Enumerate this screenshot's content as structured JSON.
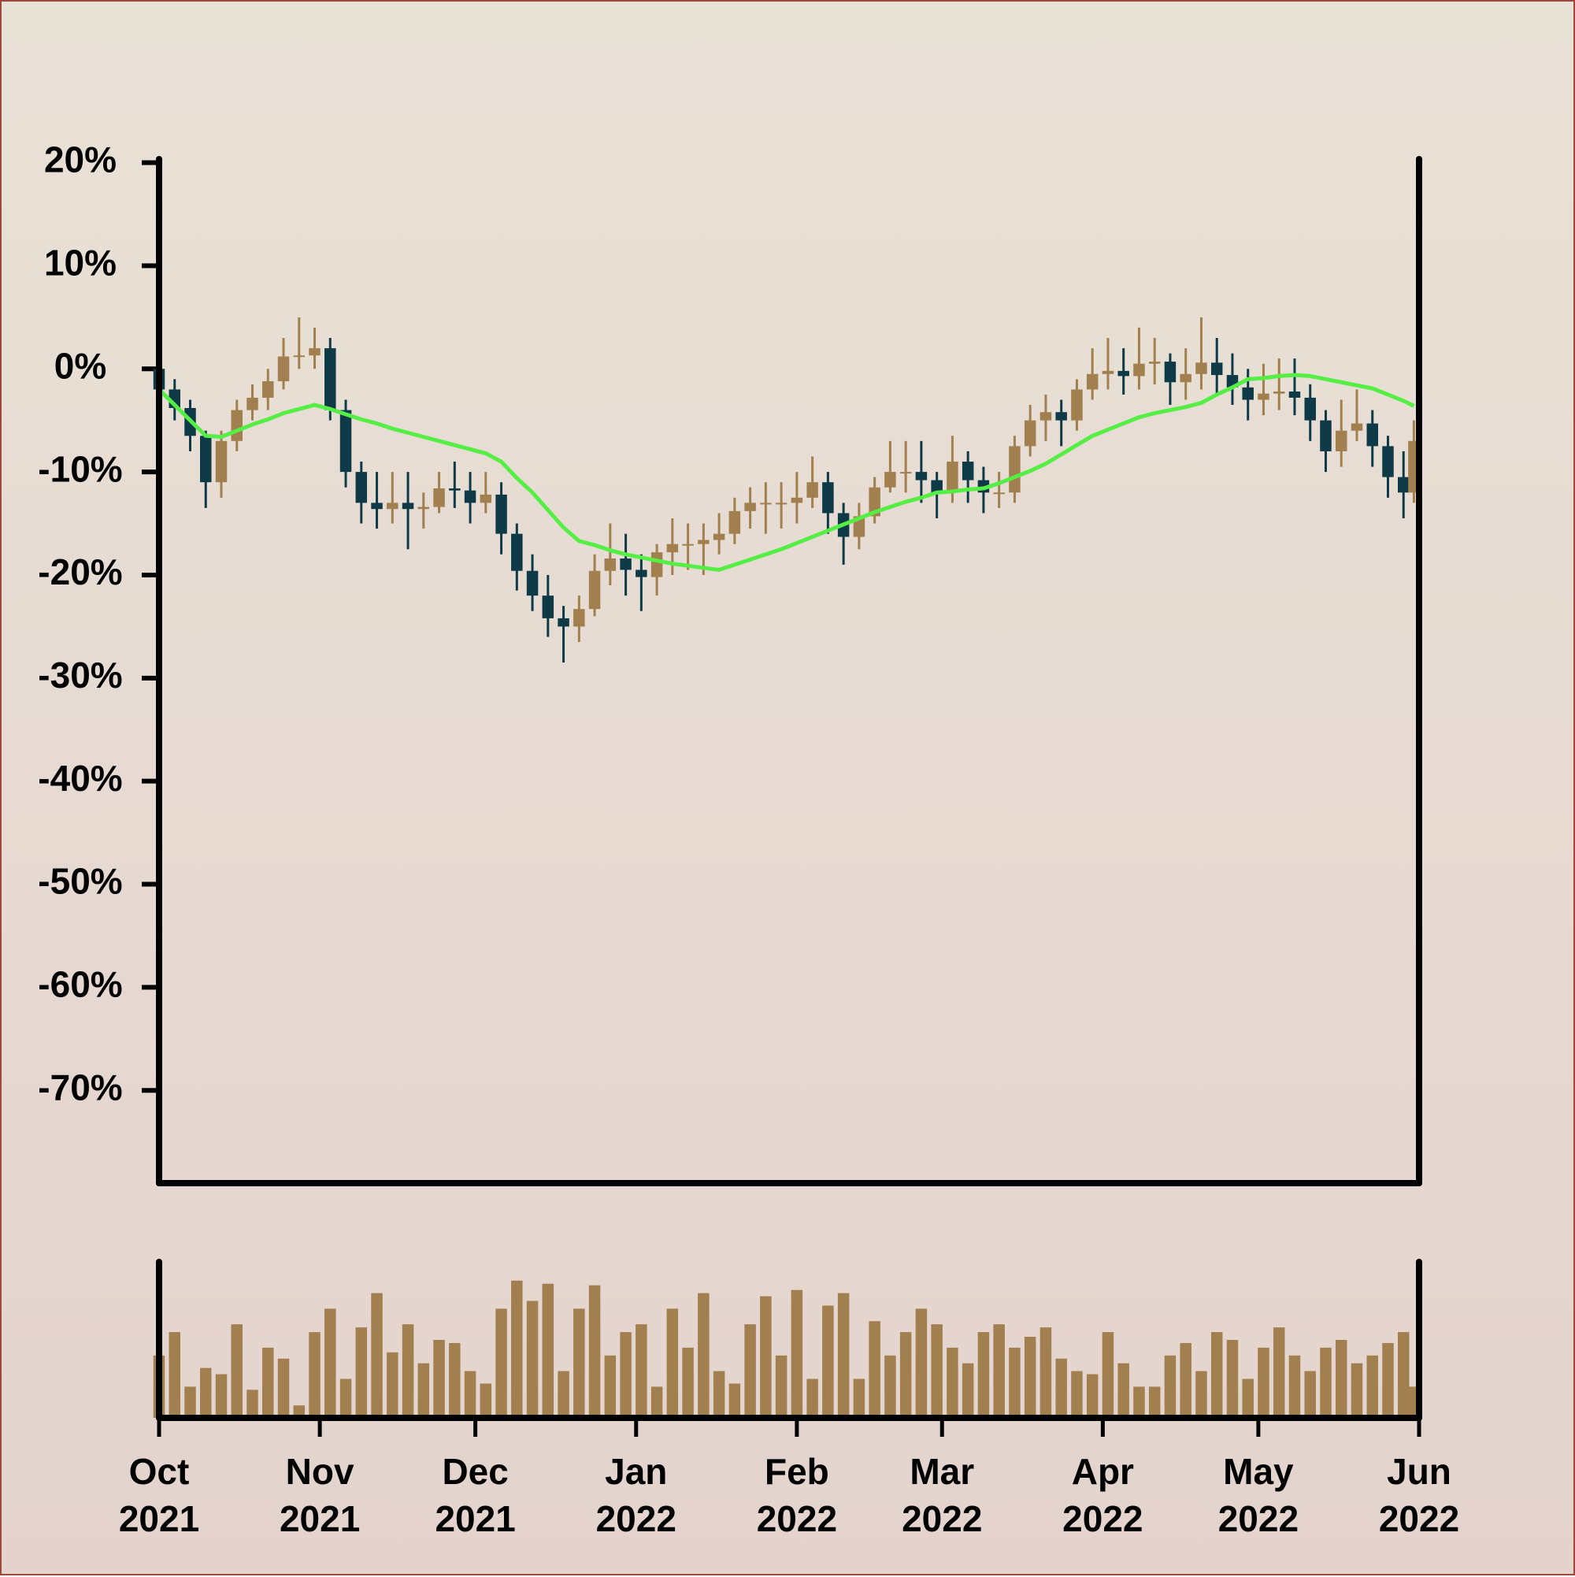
{
  "chart_data": {
    "type": "candlestick",
    "x": [
      0,
      3,
      6,
      9,
      12,
      15,
      18,
      21,
      24,
      27,
      30,
      33,
      36,
      39,
      42,
      45,
      48,
      51,
      54,
      57,
      60,
      63,
      66,
      69,
      72,
      75,
      78,
      81,
      84,
      87,
      90,
      93,
      96,
      99,
      102,
      105,
      108,
      111,
      114,
      117,
      120,
      123,
      126,
      129,
      132,
      135,
      138,
      141,
      144,
      147,
      150,
      153,
      156,
      159,
      162,
      165,
      168,
      171,
      174,
      177,
      180,
      183,
      186,
      189,
      192,
      195,
      198,
      201,
      204,
      207,
      210,
      213,
      216,
      219,
      222,
      225,
      228,
      231,
      234,
      237,
      240,
      242
    ],
    "open": [
      0,
      -2,
      -3.8,
      -6.5,
      -11,
      -7,
      -4,
      -2.8,
      -1.2,
      1.2,
      1.3,
      2,
      -4,
      -10,
      -13,
      -13.6,
      -13,
      -13.6,
      -13.4,
      -11.6,
      -11.8,
      -13,
      -12.2,
      -16,
      -19.6,
      -22,
      -24.2,
      -25,
      -23.3,
      -19.6,
      -18.4,
      -19.5,
      -20.2,
      -17.8,
      -17,
      -17,
      -16.6,
      -16,
      -13.8,
      -13,
      -13,
      -13,
      -12.5,
      -11,
      -14,
      -16.3,
      -14.3,
      -11.5,
      -10,
      -10,
      -10.8,
      -12,
      -9,
      -10.8,
      -12,
      -12,
      -7.5,
      -5,
      -4.2,
      -5,
      -2,
      -0.5,
      -0.2,
      -0.7,
      0.5,
      0.7,
      -1.3,
      -0.5,
      0.6,
      -0.6,
      -1.8,
      -3,
      -2.4,
      -2.2,
      -2.8,
      -5,
      -8,
      -6,
      -5.3,
      -7.5,
      -10.5,
      -12
    ],
    "high": [
      0.5,
      -1,
      -3,
      -6,
      -6,
      -3,
      -1.5,
      0,
      3,
      5,
      4,
      3,
      -3,
      -9,
      -10,
      -10,
      -10,
      -12,
      -10,
      -9,
      -10,
      -10,
      -11,
      -15,
      -18,
      -20,
      -23,
      -22,
      -18,
      -15,
      -16,
      -18,
      -17,
      -14.5,
      -15,
      -15,
      -14,
      -12.5,
      -11.5,
      -11,
      -11,
      -10,
      -8.5,
      -10,
      -13,
      -13,
      -10.5,
      -7,
      -7,
      -7,
      -10,
      -6.5,
      -8,
      -9.5,
      -10,
      -6.5,
      -3.5,
      -2.5,
      -3,
      -1,
      2,
      3,
      2,
      4,
      3,
      1.5,
      2,
      5,
      3,
      1.5,
      0,
      0.5,
      1,
      1,
      -1.5,
      -4,
      -3,
      -2,
      -4,
      -6.5,
      -8,
      -5
    ],
    "low": [
      -3,
      -5,
      -8,
      -13.5,
      -12.5,
      -8,
      -5,
      -4,
      -2,
      0,
      0,
      -5,
      -11.5,
      -15,
      -15.5,
      -15,
      -17.5,
      -15.5,
      -14,
      -13.5,
      -15,
      -14,
      -18,
      -21.5,
      -23.5,
      -26,
      -28.5,
      -26.5,
      -24,
      -21,
      -22,
      -23.5,
      -22,
      -20,
      -19.5,
      -20,
      -18,
      -17,
      -15.5,
      -16,
      -15.5,
      -15,
      -13.5,
      -16,
      -19,
      -17.5,
      -15,
      -12,
      -12,
      -13,
      -14.5,
      -13,
      -13,
      -14,
      -13.5,
      -13,
      -8.5,
      -7,
      -7.5,
      -6,
      -3,
      -2,
      -2.5,
      -2,
      -1.5,
      -3.5,
      -3,
      -2,
      -2.5,
      -3.5,
      -5,
      -4.5,
      -4,
      -4.5,
      -7,
      -10,
      -9.5,
      -7,
      -9.5,
      -12.5,
      -14.5,
      -13
    ],
    "close": [
      -2,
      -3.8,
      -6.5,
      -11,
      -7,
      -4,
      -2.8,
      -1.2,
      1.2,
      1.3,
      2,
      -4,
      -10,
      -13,
      -13.6,
      -13,
      -13.6,
      -13.4,
      -11.6,
      -11.8,
      -13,
      -12.2,
      -16,
      -19.6,
      -22,
      -24.2,
      -25,
      -23.3,
      -19.6,
      -18.4,
      -19.5,
      -20.2,
      -17.8,
      -17,
      -17,
      -16.6,
      -16,
      -13.8,
      -13,
      -13,
      -13,
      -12.5,
      -11,
      -14,
      -16.3,
      -14.3,
      -11.5,
      -10,
      -10,
      -10.8,
      -12,
      -9,
      -10.8,
      -12,
      -12,
      -7.5,
      -5,
      -4.2,
      -5,
      -2,
      -0.5,
      -0.2,
      -0.7,
      0.5,
      0.7,
      -1.3,
      -0.5,
      0.6,
      -0.6,
      -1.8,
      -3,
      -2.4,
      -2.2,
      -2.8,
      -5,
      -8,
      -6,
      -5.3,
      -7.5,
      -10.5,
      -12,
      -7
    ],
    "up_color": "#a17f4e",
    "down_color": "#0e3a48",
    "moving_average": {
      "color": "#55ee44",
      "values": [
        -2,
        -3.5,
        -5,
        -6.5,
        -6.6,
        -6,
        -5.4,
        -4.9,
        -4.3,
        -3.9,
        -3.5,
        -3.9,
        -4.4,
        -4.9,
        -5.3,
        -5.8,
        -6.2,
        -6.6,
        -7,
        -7.4,
        -7.8,
        -8.2,
        -9,
        -10.6,
        -12,
        -13.7,
        -15.4,
        -16.7,
        -17.1,
        -17.6,
        -18,
        -18.3,
        -18.6,
        -18.9,
        -19.1,
        -19.3,
        -19.5,
        -19,
        -18.5,
        -18,
        -17.5,
        -16.9,
        -16.3,
        -15.7,
        -15.1,
        -14.5,
        -13.9,
        -13.4,
        -12.9,
        -12.5,
        -12,
        -11.9,
        -11.7,
        -11.6,
        -11.1,
        -10.5,
        -9.9,
        -9.2,
        -8.3,
        -7.4,
        -6.5,
        -5.9,
        -5.3,
        -4.7,
        -4.3,
        -4,
        -3.7,
        -3.3,
        -2.5,
        -1.8,
        -1,
        -0.9,
        -0.7,
        -0.6,
        -0.7,
        -1,
        -1.3,
        -1.6,
        -1.9,
        -2.5,
        -3.1,
        -3.6
      ]
    },
    "volume": {
      "color": "#a17f4e",
      "ylim": [
        0,
        100
      ],
      "values": [
        40,
        55,
        20,
        32,
        28,
        60,
        18,
        45,
        38,
        8,
        55,
        70,
        25,
        58,
        80,
        42,
        60,
        35,
        50,
        48,
        30,
        22,
        70,
        88,
        75,
        86,
        30,
        70,
        85,
        40,
        55,
        60,
        20,
        70,
        45,
        80,
        30,
        22,
        60,
        78,
        40,
        82,
        25,
        72,
        80,
        25,
        62,
        40,
        55,
        70,
        60,
        45,
        35,
        55,
        60,
        45,
        52,
        58,
        38,
        30,
        28,
        55,
        35,
        20,
        20,
        40,
        48,
        30,
        55,
        50,
        25,
        45,
        58,
        40,
        30,
        45,
        50,
        35,
        40,
        48,
        55,
        20
      ]
    },
    "xlim": [
      0,
      243
    ],
    "xticks": [
      {
        "value": 0,
        "label": "Oct 2021"
      },
      {
        "value": 31,
        "label": "Nov 2021"
      },
      {
        "value": 61,
        "label": "Dec 2021"
      },
      {
        "value": 92,
        "label": "Jan 2022"
      },
      {
        "value": 123,
        "label": "Feb 2022"
      },
      {
        "value": 151,
        "label": "Mar 2022"
      },
      {
        "value": 182,
        "label": "Apr 2022"
      },
      {
        "value": 212,
        "label": "May 2022"
      },
      {
        "value": 243,
        "label": "Jun 2022"
      }
    ],
    "ylim": [
      -79,
      20.5
    ],
    "yticks": [
      {
        "value": 20,
        "label": "20%"
      },
      {
        "value": 10,
        "label": "10%"
      },
      {
        "value": 0,
        "label": "0%"
      },
      {
        "value": -10,
        "label": "-10%"
      },
      {
        "value": -20,
        "label": "-20%"
      },
      {
        "value": -30,
        "label": "-30%"
      },
      {
        "value": -40,
        "label": "-40%"
      },
      {
        "value": -50,
        "label": "-50%"
      },
      {
        "value": -60,
        "label": "-60%"
      },
      {
        "value": -70,
        "label": "-70%"
      }
    ]
  }
}
